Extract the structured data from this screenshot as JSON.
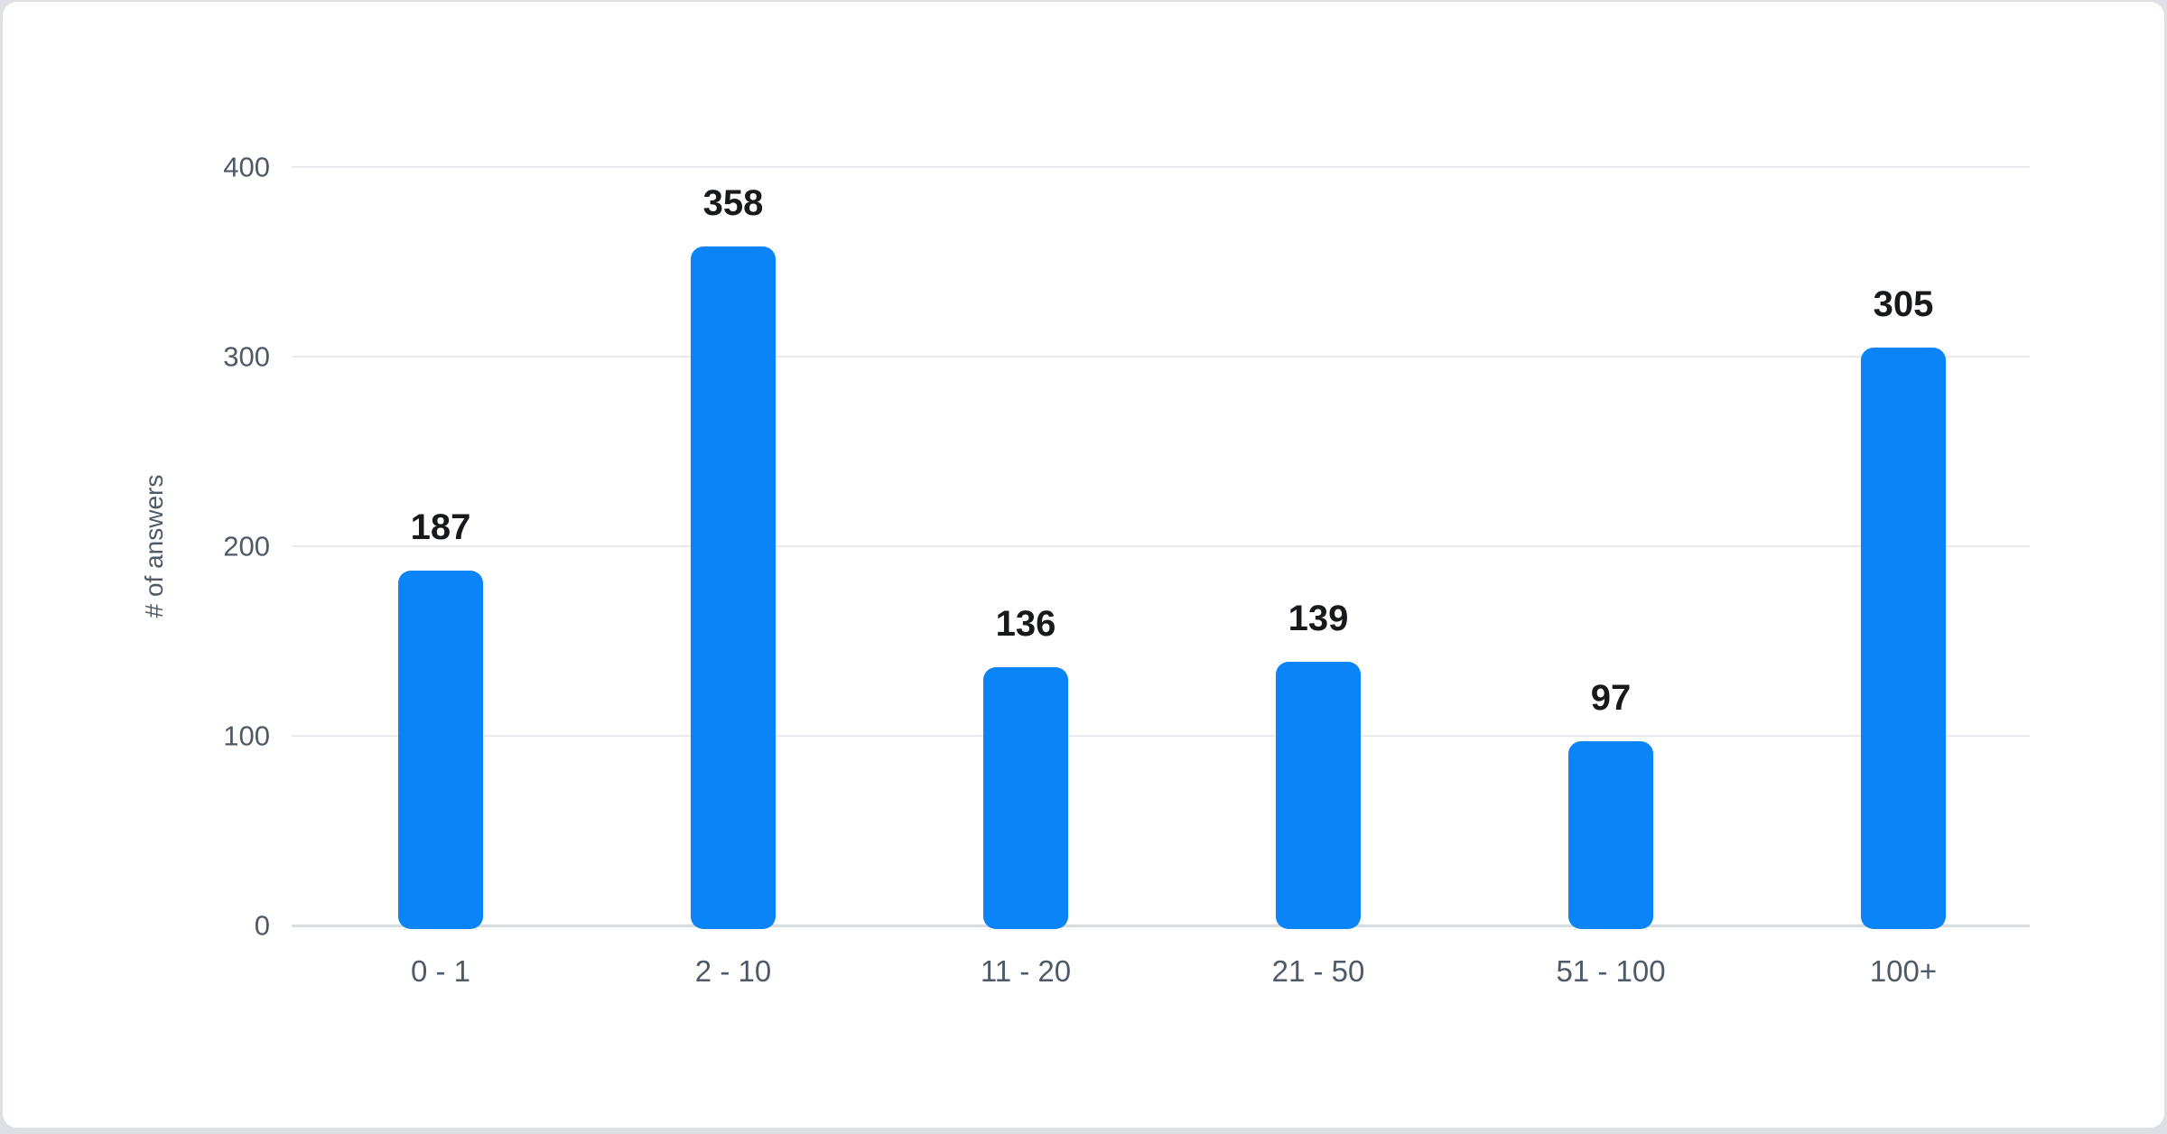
{
  "page": {
    "backdrop_color": "#dde1e5",
    "card_color": "#ffffff"
  },
  "chart_data": {
    "type": "bar",
    "categories": [
      "0 - 1",
      "2 - 10",
      "11 - 20",
      "21 - 50",
      "51 - 100",
      "100+"
    ],
    "values": [
      187,
      358,
      136,
      139,
      97,
      305
    ],
    "value_labels": [
      "187",
      "358",
      "136",
      "139",
      "97",
      "305"
    ],
    "title": "",
    "xlabel": "",
    "ylabel": "# of answers",
    "yticks": [
      0,
      100,
      200,
      300,
      400
    ],
    "ytick_labels": [
      "0",
      "100",
      "200",
      "300",
      "400"
    ],
    "ylim": [
      0,
      400
    ],
    "grid": "horizontal",
    "legend": "none",
    "bar_color": "#0a84f7",
    "value_label_color": "#17191d",
    "axis_text_color": "#4e5a68",
    "gridline_color": "#e8eaed",
    "baseline_color": "#d9dde1"
  }
}
